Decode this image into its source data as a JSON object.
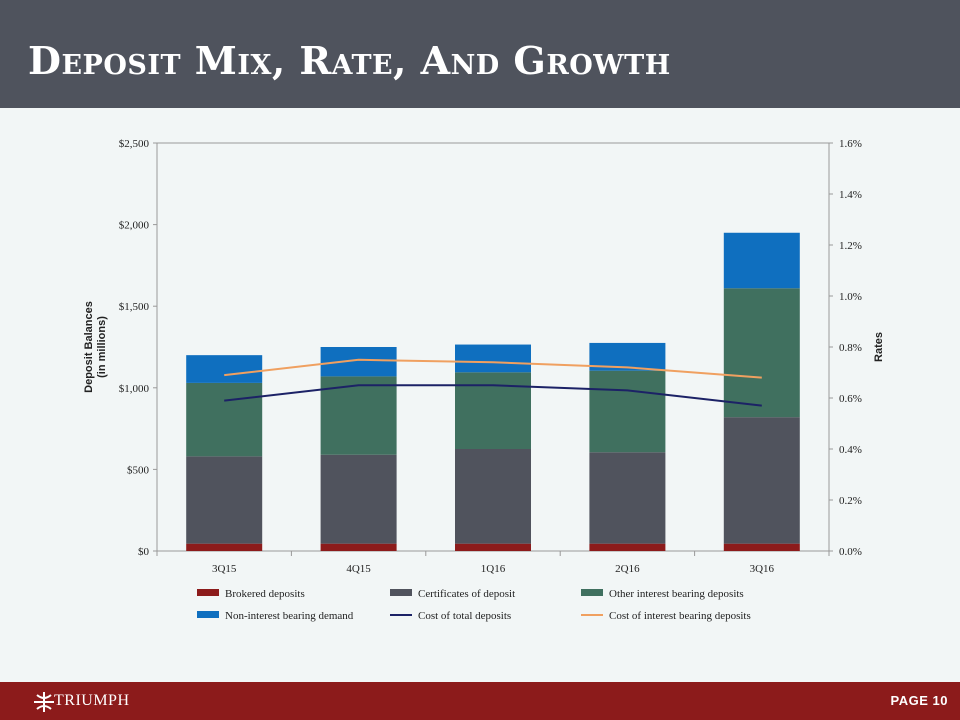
{
  "header": {
    "title": "Deposit Mix, Rate, And Growth"
  },
  "footer": {
    "logo_text": "TRIUMPH",
    "page_label": "PAGE 10"
  },
  "colors": {
    "header_bg": "#4f535d",
    "footer_bg": "#8c1b1b",
    "brokered": "#8c1b1b",
    "cds": "#50535d",
    "other_ib": "#40705f",
    "non_ib": "#0f6fbf",
    "cost_total": "#1c2266",
    "cost_ib": "#f0a060"
  },
  "chart_data": {
    "type": "bar",
    "stacked": true,
    "categories": [
      "3Q15",
      "4Q15",
      "1Q16",
      "2Q16",
      "3Q16"
    ],
    "ylabel": "Deposit Balances\n(in millions)",
    "ylim": [
      0,
      2500
    ],
    "yticks": [
      "$0",
      "$500",
      "$1,000",
      "$1,500",
      "$2,000",
      "$2,500"
    ],
    "y2label": "Rates",
    "y2lim": [
      0,
      1.6
    ],
    "y2ticks": [
      "0.0%",
      "0.2%",
      "0.4%",
      "0.6%",
      "0.8%",
      "1.0%",
      "1.2%",
      "1.4%",
      "1.6%"
    ],
    "legend_position": "bottom",
    "series": [
      {
        "name": "Brokered deposits",
        "kind": "bar",
        "color": "#8c1b1b",
        "values": [
          45,
          45,
          45,
          45,
          45
        ]
      },
      {
        "name": "Certificates of deposit",
        "kind": "bar",
        "color": "#50535d",
        "values": [
          535,
          545,
          580,
          560,
          775
        ]
      },
      {
        "name": "Other interest bearing deposits",
        "kind": "bar",
        "color": "#40705f",
        "values": [
          450,
          480,
          470,
          500,
          790
        ]
      },
      {
        "name": "Non-interest bearing demand",
        "kind": "bar",
        "color": "#0f6fbf",
        "values": [
          170,
          180,
          170,
          170,
          340
        ]
      },
      {
        "name": "Cost of total deposits",
        "kind": "line",
        "axis": "right",
        "color": "#1c2266",
        "values": [
          0.59,
          0.65,
          0.65,
          0.63,
          0.57
        ]
      },
      {
        "name": "Cost of interest bearing deposits",
        "kind": "line",
        "axis": "right",
        "color": "#f0a060",
        "values": [
          0.69,
          0.75,
          0.74,
          0.72,
          0.68
        ]
      }
    ]
  }
}
